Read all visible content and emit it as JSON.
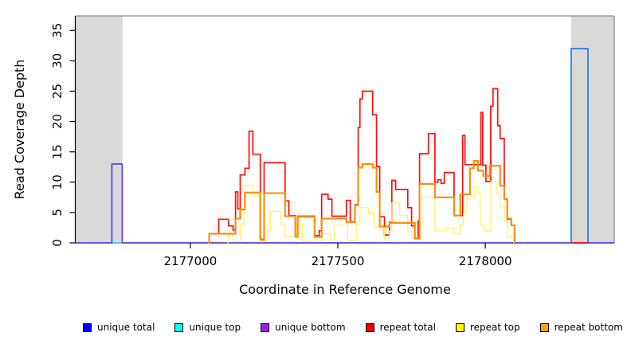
{
  "chart_data": {
    "type": "line",
    "subtype": "step-coverage",
    "title": "",
    "xlabel": "Coordinate in Reference Genome",
    "ylabel": "Read Coverage Depth",
    "xlim": [
      2176610,
      2178437
    ],
    "ylim": [
      0,
      37.4
    ],
    "x_ticks": [
      2177000,
      2177500,
      2178000
    ],
    "y_ticks": [
      0,
      5,
      10,
      15,
      20,
      25,
      30,
      35
    ],
    "grid": false,
    "legend_position": "bottom",
    "frame_colors": {
      "top": "#8a8a8a",
      "right": "#8a8a8a",
      "left": "#000000",
      "bottom": "#000000"
    },
    "shaded_regions": [
      {
        "x0": 2176610,
        "x1": 2176770,
        "color": "#d9d9d9"
      },
      {
        "x0": 2178291,
        "x1": 2178437,
        "color": "#d9d9d9"
      }
    ],
    "series": [
      {
        "name": "unique total",
        "color": "#1470e6",
        "width": 1.6,
        "segments": [
          [
            [
              2176610,
              0
            ],
            [
              2176734,
              13
            ],
            [
              2176769,
              0
            ],
            [
              2178291,
              32
            ],
            [
              2178348,
              0
            ],
            [
              2178437,
              0
            ]
          ]
        ]
      },
      {
        "name": "unique top",
        "color": "#00e5ee",
        "width": 1.2,
        "segments": [
          [
            [
              2176610,
              0
            ],
            [
              2178437,
              0
            ]
          ]
        ]
      },
      {
        "name": "unique bottom",
        "color": "#6a3aeb",
        "width": 1.5,
        "segments": [
          [
            [
              2176610,
              0
            ],
            [
              2176734,
              13
            ],
            [
              2176769,
              0
            ],
            [
              2178437,
              0
            ]
          ]
        ]
      },
      {
        "name": "repeat total",
        "color": "#ff0d0d",
        "width": 1.7,
        "segments": [
          [
            [
              2177060,
              0
            ],
            [
              2177064,
              1.5
            ],
            [
              2177096,
              3.9
            ],
            [
              2177129,
              2.8
            ],
            [
              2177145,
              2.1
            ],
            [
              2177153,
              8.4
            ],
            [
              2177161,
              5.6
            ],
            [
              2177169,
              11.2
            ],
            [
              2177185,
              12.3
            ],
            [
              2177199,
              18.4
            ],
            [
              2177212,
              14.6
            ],
            [
              2177237,
              0.6
            ],
            [
              2177250,
              13.2
            ],
            [
              2177321,
              6.9
            ],
            [
              2177334,
              4.5
            ],
            [
              2177356,
              1.0
            ],
            [
              2177364,
              4.4
            ],
            [
              2177421,
              1.2
            ],
            [
              2177437,
              2.0
            ],
            [
              2177445,
              8.0
            ],
            [
              2177467,
              7.2
            ],
            [
              2177480,
              4.4
            ],
            [
              2177529,
              7.0
            ],
            [
              2177542,
              3.5
            ],
            [
              2177558,
              6.3
            ],
            [
              2177569,
              19.0
            ],
            [
              2177575,
              23.7
            ],
            [
              2177583,
              25.0
            ],
            [
              2177618,
              21.1
            ],
            [
              2177631,
              12.6
            ],
            [
              2177642,
              4.3
            ],
            [
              2177658,
              1.3
            ],
            [
              2177675,
              3.4
            ],
            [
              2177683,
              10.3
            ],
            [
              2177696,
              8.8
            ],
            [
              2177737,
              5.8
            ],
            [
              2177750,
              2.8
            ],
            [
              2177761,
              0.8
            ],
            [
              2177772,
              3.6
            ],
            [
              2177777,
              14.7
            ],
            [
              2177807,
              18.0
            ],
            [
              2177829,
              10.0
            ],
            [
              2177839,
              10.4
            ],
            [
              2177850,
              9.8
            ],
            [
              2177861,
              11.6
            ],
            [
              2177894,
              4.5
            ],
            [
              2177923,
              17.7
            ],
            [
              2177931,
              12.9
            ],
            [
              2177985,
              21.5
            ],
            [
              2177991,
              12.8
            ],
            [
              2178002,
              10.1
            ],
            [
              2178018,
              22.5
            ],
            [
              2178026,
              25.4
            ],
            [
              2178042,
              19.3
            ],
            [
              2178050,
              17.2
            ],
            [
              2178064,
              7.2
            ],
            [
              2178074,
              3.9
            ],
            [
              2178088,
              2.9
            ],
            [
              2178099,
              0
            ]
          ],
          [
            [
              2178291,
              0
            ],
            [
              2178348,
              0
            ]
          ]
        ]
      },
      {
        "name": "repeat top",
        "color": "#fff066",
        "width": 1.2,
        "segments": [
          [
            [
              2177125,
              0
            ],
            [
              2177129,
              1.4
            ],
            [
              2177145,
              0.2
            ],
            [
              2177169,
              3.0
            ],
            [
              2177182,
              9.5
            ],
            [
              2177212,
              7.6
            ],
            [
              2177237,
              0.3
            ],
            [
              2177261,
              2.0
            ],
            [
              2177272,
              5.2
            ],
            [
              2177307,
              3.0
            ],
            [
              2177321,
              1.0
            ],
            [
              2177360,
              3.1
            ],
            [
              2177380,
              0.3
            ],
            [
              2177445,
              1.5
            ],
            [
              2177475,
              0.5
            ],
            [
              2177488,
              2.9
            ],
            [
              2177534,
              0.4
            ],
            [
              2177564,
              3.0
            ],
            [
              2177575,
              5.8
            ],
            [
              2177604,
              5.0
            ],
            [
              2177623,
              2.5
            ],
            [
              2177658,
              0.5
            ],
            [
              2177675,
              2.0
            ],
            [
              2177683,
              6.6
            ],
            [
              2177710,
              4.5
            ],
            [
              2177737,
              2.0
            ],
            [
              2177750,
              0.8
            ],
            [
              2177777,
              2.5
            ],
            [
              2177785,
              7.5
            ],
            [
              2177829,
              2.0
            ],
            [
              2177867,
              2.4
            ],
            [
              2177894,
              1.5
            ],
            [
              2177915,
              3.0
            ],
            [
              2177926,
              5.0
            ],
            [
              2177937,
              7.4
            ],
            [
              2177964,
              9.3
            ],
            [
              2177975,
              8.1
            ],
            [
              2177983,
              2.9
            ],
            [
              2177996,
              2.0
            ],
            [
              2178018,
              10.1
            ],
            [
              2178037,
              8.2
            ],
            [
              2178050,
              6.0
            ],
            [
              2178064,
              3.5
            ],
            [
              2178074,
              1.0
            ],
            [
              2178096,
              0
            ]
          ]
        ]
      },
      {
        "name": "repeat bottom",
        "color": "#ff8c00",
        "width": 2.1,
        "segments": [
          [
            [
              2177060,
              0
            ],
            [
              2177064,
              1.5
            ],
            [
              2177153,
              4.0
            ],
            [
              2177169,
              5.5
            ],
            [
              2177185,
              8.3
            ],
            [
              2177237,
              0.5
            ],
            [
              2177250,
              8.2
            ],
            [
              2177321,
              4.4
            ],
            [
              2177356,
              1.0
            ],
            [
              2177364,
              4.3
            ],
            [
              2177421,
              1.0
            ],
            [
              2177445,
              4.0
            ],
            [
              2177529,
              3.4
            ],
            [
              2177558,
              6.2
            ],
            [
              2177569,
              12.4
            ],
            [
              2177583,
              13.0
            ],
            [
              2177618,
              12.4
            ],
            [
              2177631,
              8.4
            ],
            [
              2177642,
              2.7
            ],
            [
              2177675,
              3.3
            ],
            [
              2177761,
              0.7
            ],
            [
              2177777,
              9.7
            ],
            [
              2177829,
              7.5
            ],
            [
              2177894,
              4.5
            ],
            [
              2177915,
              8.0
            ],
            [
              2177948,
              12.3
            ],
            [
              2177961,
              13.5
            ],
            [
              2177975,
              11.9
            ],
            [
              2177993,
              11.0
            ],
            [
              2178015,
              12.7
            ],
            [
              2178050,
              9.4
            ],
            [
              2178064,
              7.2
            ],
            [
              2178074,
              4.0
            ],
            [
              2178088,
              2.9
            ],
            [
              2178099,
              0
            ]
          ]
        ]
      }
    ]
  },
  "legend": {
    "items": [
      {
        "label": "unique total",
        "swatch": "#0000f0"
      },
      {
        "label": "unique top",
        "swatch": "#00ffff"
      },
      {
        "label": "unique bottom",
        "swatch": "#a020f0"
      },
      {
        "label": "repeat total",
        "swatch": "#ff0000"
      },
      {
        "label": "repeat top",
        "swatch": "#ffff00"
      },
      {
        "label": "repeat bottom",
        "swatch": "#ffa500"
      }
    ]
  }
}
